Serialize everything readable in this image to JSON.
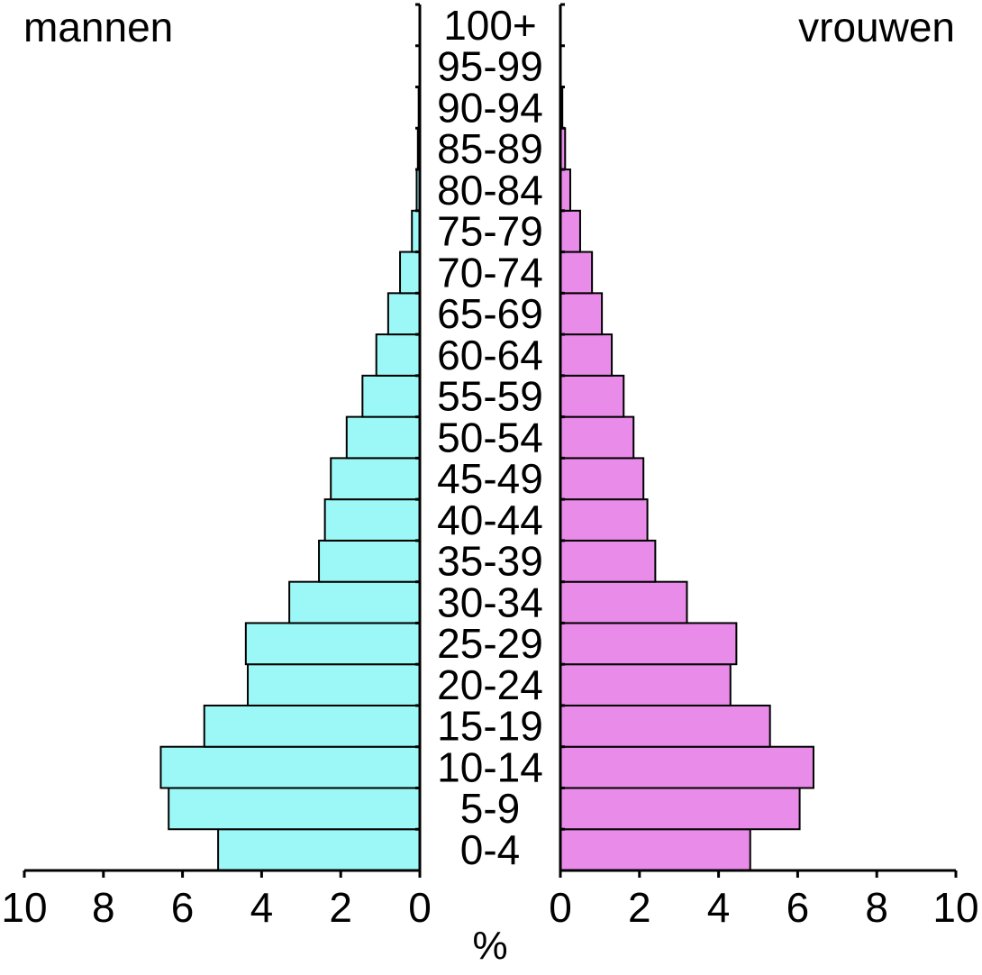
{
  "chart_data": {
    "type": "bar",
    "subtype": "population-pyramid",
    "orientation": "horizontal",
    "categories": [
      "0-4",
      "5-9",
      "10-14",
      "15-19",
      "20-24",
      "25-29",
      "30-34",
      "35-39",
      "40-44",
      "45-49",
      "50-54",
      "55-59",
      "60-64",
      "65-69",
      "70-74",
      "75-79",
      "80-84",
      "85-89",
      "90-94",
      "95-99",
      "100+"
    ],
    "series": [
      {
        "name": "mannen",
        "side": "left",
        "color": "#9cf8f6",
        "values": [
          5.1,
          6.35,
          6.55,
          5.45,
          4.35,
          4.4,
          3.3,
          2.55,
          2.4,
          2.25,
          1.85,
          1.45,
          1.1,
          0.8,
          0.5,
          0.2,
          0.08,
          0.05,
          0.03,
          0.01,
          0.0
        ]
      },
      {
        "name": "vrouwen",
        "side": "right",
        "color": "#e98be8",
        "values": [
          4.8,
          6.05,
          6.4,
          5.3,
          4.3,
          4.45,
          3.2,
          2.4,
          2.2,
          2.1,
          1.85,
          1.6,
          1.3,
          1.05,
          0.8,
          0.5,
          0.25,
          0.12,
          0.05,
          0.01,
          0.0
        ]
      }
    ],
    "left_label": "mannen",
    "right_label": "vrouwen",
    "x_unit": "%",
    "x_ticks": [
      0,
      2,
      4,
      6,
      8,
      10
    ],
    "xlim": [
      0,
      10
    ],
    "grid": false
  }
}
